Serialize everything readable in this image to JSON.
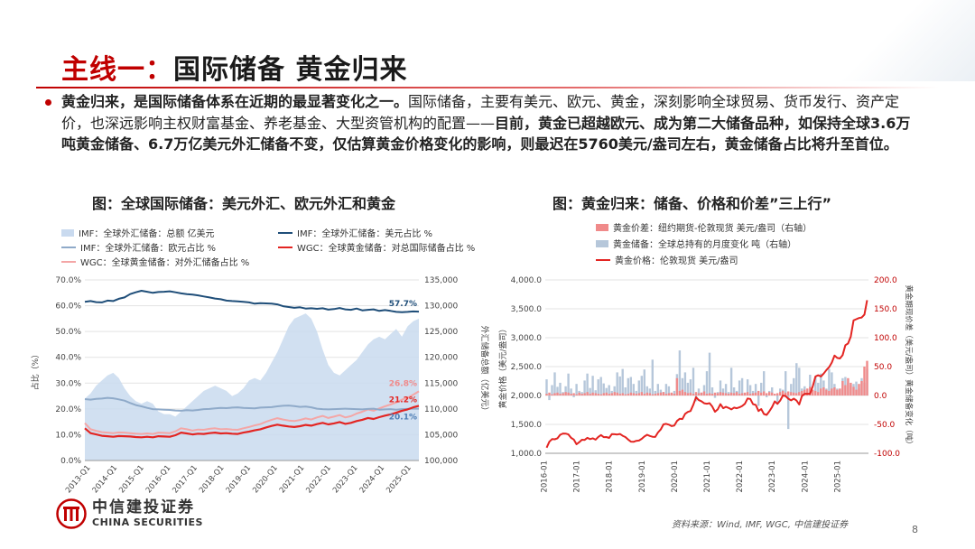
{
  "title": {
    "highlight": "主线一：",
    "rest": "国际储备  黄金归来"
  },
  "bullet": {
    "p1_bold": "黄金归来，是国际储备体系在近期的最显著变化之一。",
    "p1_normal": "国际储备，主要有美元、欧元、黄金，深刻影响全球贸易、货币发行、资产定价，也深远影响主权财富基金、养老基金、大型资管机构的配置——",
    "p1_bold2": "目前，黄金已超越欧元、成为第二大储备品种，如保持全球3.6万吨黄金储备、6.7万亿美元外汇储备不变，仅估算黄金价格变化的影响，则最迟在5760美元/盎司左右，黄金储备占比将升至首位。"
  },
  "left_chart_title": "图：全球国际储备：美元外汇、欧元外汇和黄金",
  "right_chart_title": "图：黄金归来：储备、价格和价差”三上行”",
  "left_legend": [
    {
      "label": "IMF：全球外汇储备：总额 亿美元",
      "kind": "area",
      "color": "#c9daef"
    },
    {
      "label": "IMF：全球外汇储备：美元占比 %",
      "kind": "line",
      "color": "#1f4e79"
    },
    {
      "label": "IMF：全球外汇储备：欧元占比 %",
      "kind": "line",
      "color": "#8faac9"
    },
    {
      "label": "WGC：全球黄金储备：对总国际储备占比 %",
      "kind": "line",
      "color": "#e32522"
    },
    {
      "label": "WGC：全球黄金储备：对外汇储备占比 %",
      "kind": "line",
      "color": "#f4a6a6"
    }
  ],
  "right_legend": [
    {
      "label": "黄金价差：纽约期货-伦敦现货 美元/盎司（右轴）",
      "kind": "area",
      "color": "#f08a8a"
    },
    {
      "label": "黄金储备：全球总持有的月度变化 吨（右轴）",
      "kind": "area",
      "color": "#b6c7da"
    },
    {
      "label": "黄金价格：伦敦现货 美元/盎司",
      "kind": "line",
      "color": "#e32522"
    }
  ],
  "chart_data": [
    {
      "type": "line",
      "x_ticks": [
        "2013-Q1",
        "2014-Q1",
        "2015-Q1",
        "2016-Q1",
        "2017-Q1",
        "2018-Q1",
        "2019-Q1",
        "2020-Q1",
        "2021-Q1",
        "2022-Q1",
        "2023-Q1",
        "2024-Q1",
        "2025-Q1"
      ],
      "ylabel": "占比（%）",
      "y2label": "外汇储备总额（亿美元）",
      "ylim": [
        0,
        70
      ],
      "y_ticks": [
        "0.0%",
        "10.0%",
        "20.0%",
        "30.0%",
        "40.0%",
        "50.0%",
        "60.0%",
        "70.0%"
      ],
      "y2lim": [
        100000,
        135000
      ],
      "y2_ticks": [
        "100,000",
        "105,000",
        "110,000",
        "115,000",
        "120,000",
        "125,000",
        "130,000",
        "135,000"
      ],
      "grid": true,
      "legend": "top",
      "series": [
        {
          "name": "IMF：全球外汇储备：总额 亿美元",
          "axis": "right",
          "values": [
            112000,
            113000,
            114500,
            115500,
            116500,
            117000,
            116000,
            114000,
            112500,
            111500,
            111000,
            111500,
            111000,
            109500,
            109000,
            109000,
            108500,
            109500,
            110500,
            111500,
            112500,
            113500,
            114000,
            114500,
            114000,
            113500,
            112500,
            113000,
            114000,
            115500,
            116000,
            115500,
            117000,
            119000,
            121000,
            123500,
            126000,
            127500,
            128000,
            128500,
            127500,
            125000,
            121500,
            118500,
            117000,
            116500,
            117500,
            118500,
            119500,
            121000,
            122500,
            123500,
            124000,
            123500,
            124500,
            125500,
            124000,
            126000,
            127000,
            127500
          ]
        },
        {
          "name": "IMF：全球外汇储备：美元占比 %",
          "axis": "left",
          "values": [
            61.5,
            61.8,
            61.4,
            61.3,
            62.0,
            61.8,
            62.7,
            63.2,
            64.5,
            65.2,
            65.8,
            65.4,
            65.0,
            65.3,
            65.4,
            65.6,
            65.2,
            64.8,
            64.5,
            64.3,
            64.0,
            63.6,
            63.2,
            62.8,
            62.5,
            62.0,
            61.8,
            61.7,
            61.5,
            61.3,
            60.8,
            61.0,
            60.9,
            60.8,
            60.5,
            59.8,
            59.5,
            59.2,
            59.4,
            58.9,
            59.0,
            58.8,
            59.0,
            58.5,
            58.7,
            59.1,
            58.6,
            58.4,
            58.9,
            58.2,
            58.4,
            58.6,
            58.0,
            58.3,
            58.0,
            57.6,
            57.5,
            57.6,
            57.8,
            57.7
          ]
        },
        {
          "name": "IMF：全球外汇储备：欧元占比 %",
          "axis": "left",
          "values": [
            23.8,
            23.6,
            23.9,
            24.0,
            24.3,
            24.1,
            23.7,
            23.2,
            22.3,
            21.5,
            21.0,
            20.4,
            19.9,
            19.8,
            19.7,
            19.6,
            19.4,
            19.3,
            19.5,
            19.4,
            19.6,
            19.9,
            20.0,
            20.2,
            20.4,
            20.3,
            20.5,
            20.6,
            20.4,
            20.3,
            20.2,
            20.5,
            20.6,
            20.7,
            21.0,
            21.2,
            21.3,
            21.1,
            20.8,
            20.9,
            20.6,
            20.1,
            19.9,
            19.8,
            19.9,
            20.0,
            20.1,
            20.0,
            19.9,
            19.8,
            20.0,
            20.1,
            19.7,
            19.8,
            19.9,
            19.7,
            19.9,
            20.0,
            20.1,
            20.1
          ]
        },
        {
          "name": "WGC：全球黄金储备：对总国际储备占比 %",
          "axis": "left",
          "values": [
            12.5,
            10.6,
            10.1,
            9.6,
            9.4,
            9.2,
            9.5,
            9.4,
            9.3,
            9.1,
            9.0,
            9.2,
            9.0,
            9.4,
            9.3,
            9.2,
            9.8,
            10.8,
            10.5,
            10.1,
            10.4,
            10.3,
            10.6,
            10.8,
            10.5,
            10.6,
            10.4,
            10.3,
            10.8,
            11.2,
            11.7,
            12.1,
            12.8,
            13.4,
            13.9,
            13.5,
            13.2,
            13.0,
            13.3,
            13.8,
            13.5,
            14.1,
            14.6,
            14.0,
            14.4,
            14.9,
            14.2,
            14.6,
            15.3,
            15.8,
            16.5,
            16.1,
            16.8,
            17.4,
            17.9,
            18.5,
            19.3,
            19.8,
            20.6,
            21.2
          ]
        },
        {
          "name": "WGC：全球黄金储备：对外汇储备占比 %",
          "axis": "left",
          "values": [
            14.5,
            12.1,
            11.5,
            11.0,
            10.8,
            10.6,
            10.9,
            10.8,
            10.6,
            10.4,
            10.3,
            10.5,
            10.3,
            10.8,
            10.7,
            10.6,
            11.3,
            12.5,
            12.1,
            11.6,
            12.0,
            11.9,
            12.3,
            12.5,
            12.1,
            12.2,
            12.0,
            11.9,
            12.5,
            13.0,
            13.6,
            14.1,
            15.0,
            15.8,
            16.4,
            15.9,
            15.5,
            15.3,
            15.7,
            16.3,
            15.9,
            16.7,
            17.3,
            16.5,
            17.0,
            17.6,
            16.7,
            17.2,
            18.2,
            18.9,
            19.8,
            19.3,
            20.2,
            21.0,
            21.7,
            22.5,
            23.6,
            24.3,
            25.5,
            26.8
          ]
        }
      ],
      "annotations": [
        "57.7%",
        "26.8%",
        "21.2%",
        "20.1%"
      ]
    },
    {
      "type": "line",
      "x_ticks": [
        "2016-01",
        "2017-01",
        "2018-01",
        "2019-01",
        "2020-01",
        "2021-01",
        "2022-01",
        "2023-01",
        "2024-01",
        "2025-01"
      ],
      "ylabel": "黄金价格（美元/盎司）",
      "y2label": "黄金期现价差（美元/盎司）黄金储备变化（吨）",
      "ylim": [
        1000,
        4000
      ],
      "y_ticks": [
        "1,000.0",
        "1,500.0",
        "2,000.0",
        "2,500.0",
        "3,000.0",
        "3,500.0",
        "4,000.0"
      ],
      "y2lim": [
        -100,
        200
      ],
      "y2_ticks": [
        "-100.0",
        "-50.0",
        "0.0",
        "50.0",
        "100.0",
        "150.0",
        "200.0"
      ],
      "grid": true,
      "legend": "top",
      "series": [
        {
          "name": "黄金价格：伦敦现货 美元/盎司",
          "axis": "left",
          "values": [
            1097,
            1200,
            1245,
            1242,
            1260,
            1320,
            1342,
            1341,
            1326,
            1267,
            1238,
            1157,
            1192,
            1234,
            1231,
            1267,
            1245,
            1260,
            1236,
            1283,
            1315,
            1280,
            1282,
            1265,
            1331,
            1330,
            1325,
            1335,
            1303,
            1282,
            1237,
            1201,
            1198,
            1215,
            1220,
            1250,
            1291,
            1320,
            1300,
            1286,
            1283,
            1359,
            1412,
            1500,
            1510,
            1495,
            1470,
            1480,
            1560,
            1597,
            1592,
            1683,
            1715,
            1732,
            1840,
            1970,
            1921,
            1900,
            1866,
            1858,
            1867,
            1808,
            1718,
            1760,
            1850,
            1780,
            1805,
            1785,
            1760,
            1790,
            1780,
            1795,
            1818,
            1856,
            1948,
            1940,
            1850,
            1836,
            1732,
            1765,
            1680,
            1664,
            1726,
            1800,
            1898,
            1855,
            1912,
            2000,
            1990,
            1943,
            1915,
            1945,
            1912,
            1845,
            1990,
            2030,
            2030,
            2030,
            2160,
            2330,
            2350,
            2330,
            2380,
            2440,
            2490,
            2570,
            2690,
            2650,
            2640,
            2700,
            2870,
            2900,
            3020,
            3300,
            3320,
            3340,
            3350,
            3400,
            3650
          ]
        },
        {
          "name": "黄金储备：全球总持有的月度变化 吨",
          "axis": "right",
          "kind": "bar",
          "values": [
            28,
            -8,
            18,
            40,
            15,
            22,
            6,
            16,
            38,
            12,
            -3,
            20,
            8,
            6,
            26,
            38,
            13,
            34,
            9,
            28,
            32,
            21,
            13,
            18,
            8,
            16,
            40,
            33,
            46,
            14,
            30,
            32,
            20,
            8,
            26,
            34,
            45,
            16,
            12,
            62,
            8,
            20,
            10,
            6,
            20,
            16,
            2,
            8,
            37,
            78,
            30,
            40,
            22,
            28,
            48,
            -10,
            12,
            5,
            18,
            42,
            74,
            14,
            -4,
            6,
            26,
            12,
            20,
            6,
            48,
            14,
            8,
            26,
            30,
            4,
            28,
            18,
            8,
            20,
            -18,
            22,
            42,
            -3,
            8,
            14,
            3,
            -14,
            12,
            10,
            42,
            -58,
            20,
            30,
            56,
            48,
            12,
            16,
            8,
            36,
            4,
            32,
            22,
            38,
            26,
            12,
            46,
            40,
            20,
            12,
            10,
            30,
            32,
            22,
            18,
            20,
            24,
            12,
            30,
            22,
            46
          ]
        },
        {
          "name": "黄金价差：纽约期货-伦敦现货 美元/盎司",
          "axis": "right",
          "kind": "bar",
          "values": [
            3,
            5,
            2,
            4,
            5,
            3,
            4,
            6,
            5,
            3,
            4,
            2,
            5,
            3,
            4,
            6,
            3,
            5,
            4,
            3,
            2,
            4,
            5,
            3,
            4,
            6,
            5,
            3,
            4,
            2,
            3,
            5,
            4,
            3,
            4,
            6,
            3,
            5,
            4,
            2,
            3,
            4,
            5,
            6,
            3,
            4,
            5,
            3,
            30,
            8,
            10,
            6,
            4,
            5,
            3,
            6,
            4,
            5,
            7,
            3,
            4,
            3,
            5,
            4,
            6,
            5,
            4,
            3,
            5,
            4,
            6,
            3,
            4,
            5,
            6,
            3,
            4,
            5,
            8,
            5,
            7,
            4,
            6,
            5,
            3,
            4,
            6,
            8,
            5,
            7,
            6,
            5,
            4,
            6,
            8,
            10,
            12,
            15,
            10,
            8,
            6,
            12,
            14,
            10,
            8,
            12,
            14,
            10,
            12,
            25,
            18,
            30,
            22,
            15,
            10,
            20,
            25,
            50,
            60
          ]
        }
      ]
    }
  ]
}
